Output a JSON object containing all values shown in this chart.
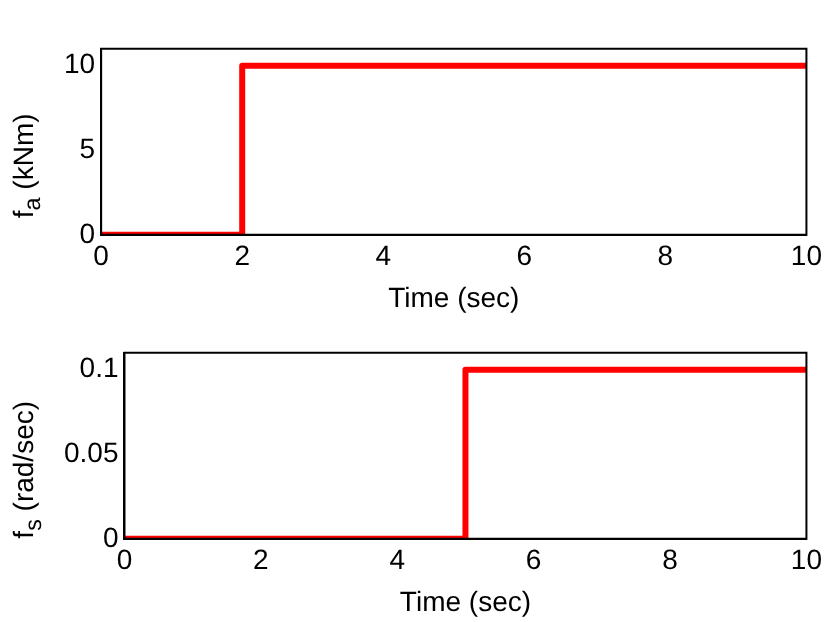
{
  "chart_data": [
    {
      "type": "step",
      "x": [
        0,
        2,
        10
      ],
      "values": [
        0,
        10,
        10
      ],
      "color": "#ff0000",
      "xlabel": "Time (sec)",
      "ylabel": "f$_{a}$ (kNm)",
      "xlim": [
        0,
        10
      ],
      "xticks": [
        0,
        2,
        4,
        6,
        8,
        10
      ],
      "ylim": [
        0,
        11
      ],
      "yticks": [
        0,
        5,
        10
      ],
      "grid": false,
      "legend": false
    },
    {
      "type": "step",
      "x": [
        0,
        5,
        10
      ],
      "values": [
        0,
        0.1,
        0.1
      ],
      "color": "#ff0000",
      "xlabel": "Time (sec)",
      "ylabel": "f$_{s}$ (rad/sec)",
      "xlim": [
        0,
        10
      ],
      "xticks": [
        0,
        2,
        4,
        6,
        8,
        10
      ],
      "ylim": [
        0,
        0.11
      ],
      "yticks": [
        0,
        0.05,
        0.1
      ],
      "grid": false,
      "legend": false
    }
  ]
}
